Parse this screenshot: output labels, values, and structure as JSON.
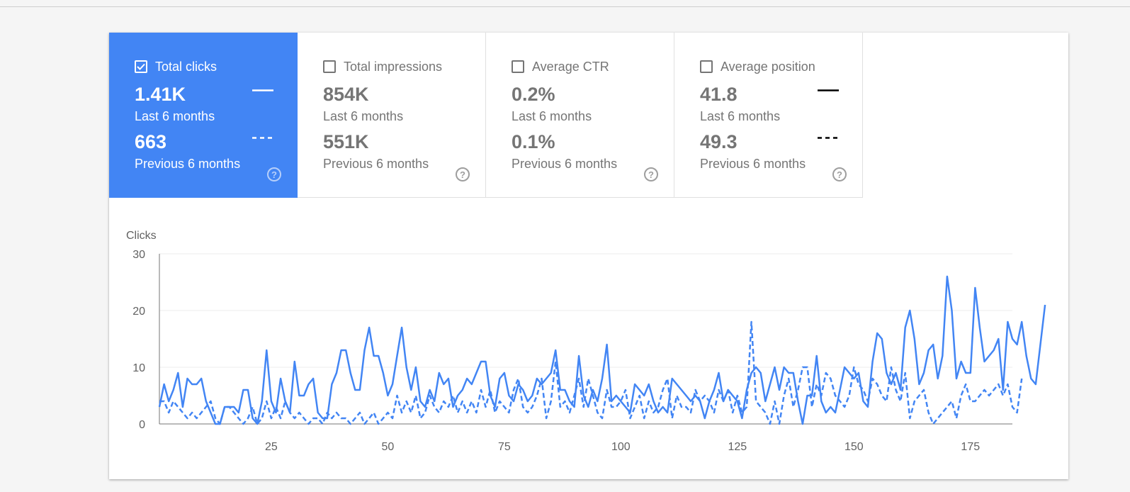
{
  "metrics": [
    {
      "label": "Total clicks",
      "checked": true,
      "last_value": "1.41K",
      "last_caption": "Last 6 months",
      "prev_value": "663",
      "prev_caption": "Previous 6 months",
      "help_glyph": "?",
      "line_color": "#ffffff"
    },
    {
      "label": "Total impressions",
      "checked": false,
      "last_value": "854K",
      "last_caption": "Last 6 months",
      "prev_value": "551K",
      "prev_caption": "Previous 6 months",
      "help_glyph": "?"
    },
    {
      "label": "Average CTR",
      "checked": false,
      "last_value": "0.2%",
      "last_caption": "Last 6 months",
      "prev_value": "0.1%",
      "prev_caption": "Previous 6 months",
      "help_glyph": "?"
    },
    {
      "label": "Average position",
      "checked": false,
      "last_value": "41.8",
      "last_caption": "Last 6 months",
      "prev_value": "49.3",
      "prev_caption": "Previous 6 months",
      "help_glyph": "?",
      "line_color": "#000000"
    }
  ],
  "colors": {
    "accent": "#4285f4",
    "inactive_text": "#757575",
    "gridline": "#eeeeee"
  },
  "chart_data": {
    "type": "line",
    "ylabel": "Clicks",
    "ylim": [
      0,
      30
    ],
    "yticks": [
      0,
      10,
      20,
      30
    ],
    "xlim": [
      1,
      184
    ],
    "xticks": [
      25,
      50,
      75,
      100,
      125,
      150,
      175
    ],
    "grid": true,
    "series": [
      {
        "style": "solid",
        "color": "#4285f4",
        "values": [
          3,
          7,
          4,
          6,
          9,
          3,
          8,
          7,
          7,
          8,
          4,
          2,
          0,
          0,
          3,
          3,
          3,
          2,
          6,
          6,
          1,
          0,
          4,
          13,
          4,
          2,
          8,
          4,
          2,
          11,
          5,
          5,
          7,
          8,
          2,
          1,
          1,
          7,
          9,
          13,
          13,
          9,
          6,
          6,
          13,
          17,
          12,
          12,
          9,
          5,
          7,
          12,
          17,
          10,
          6,
          10,
          4,
          3,
          6,
          4,
          9,
          7,
          8,
          3,
          5,
          6,
          8,
          7,
          9,
          11,
          11,
          5,
          3,
          8,
          9,
          5,
          4,
          7,
          6,
          4,
          5,
          8,
          7,
          8,
          9,
          13,
          6,
          6,
          4,
          3,
          12,
          5,
          3,
          6,
          4,
          8,
          14,
          4,
          5,
          4,
          3,
          2,
          7,
          6,
          5,
          7,
          4,
          2,
          3,
          2,
          8,
          7,
          6,
          5,
          4,
          5,
          4,
          1,
          4,
          6,
          9,
          4,
          6,
          5,
          4,
          1,
          6,
          9,
          10,
          9,
          4,
          7,
          10,
          6,
          10,
          9,
          9,
          4,
          0,
          5,
          5,
          12,
          4,
          2,
          3,
          2,
          6,
          10,
          9,
          8,
          9,
          4,
          3,
          11,
          16,
          15,
          9,
          7,
          9,
          6,
          17,
          20,
          15,
          7,
          9,
          13,
          14,
          8,
          12,
          26,
          20,
          8,
          11,
          9,
          9,
          24,
          17,
          11,
          12,
          13,
          15,
          6,
          18,
          15,
          14,
          18,
          12,
          8,
          7,
          14,
          21
        ]
      },
      {
        "style": "dashed",
        "color": "#4285f4",
        "values": [
          4,
          4,
          2,
          4,
          3,
          2,
          1,
          2,
          1,
          2,
          3,
          4,
          1,
          0,
          3,
          3,
          2,
          1,
          0,
          1,
          3,
          0,
          1,
          4,
          1,
          3,
          1,
          4,
          2,
          1,
          2,
          1,
          0,
          1,
          1,
          0,
          2,
          1,
          2,
          1,
          1,
          0,
          1,
          2,
          0,
          1,
          2,
          0,
          1,
          2,
          1,
          5,
          2,
          4,
          2,
          5,
          1,
          2,
          5,
          3,
          2,
          4,
          3,
          5,
          2,
          4,
          2,
          4,
          2,
          6,
          3,
          6,
          2,
          4,
          3,
          2,
          6,
          8,
          3,
          2,
          3,
          5,
          8,
          1,
          4,
          11,
          3,
          4,
          2,
          5,
          8,
          3,
          8,
          5,
          2,
          1,
          6,
          3,
          3,
          4,
          6,
          1,
          3,
          5,
          1,
          4,
          2,
          3,
          6,
          8,
          1,
          5,
          3,
          3,
          2,
          6,
          4,
          5,
          4,
          2,
          6,
          4,
          6,
          2,
          5,
          2,
          3,
          18,
          4,
          3,
          2,
          0,
          4,
          0,
          5,
          8,
          3,
          6,
          10,
          10,
          3,
          7,
          5,
          9,
          8,
          5,
          4,
          3,
          5,
          10,
          7,
          6,
          4,
          8,
          7,
          5,
          4,
          10,
          6,
          4,
          9,
          1,
          4,
          5,
          6,
          2,
          0,
          1,
          2,
          3,
          4,
          1,
          5,
          7,
          4,
          4,
          5,
          6,
          5,
          6,
          7,
          5,
          7,
          3,
          2,
          8
        ]
      }
    ]
  }
}
